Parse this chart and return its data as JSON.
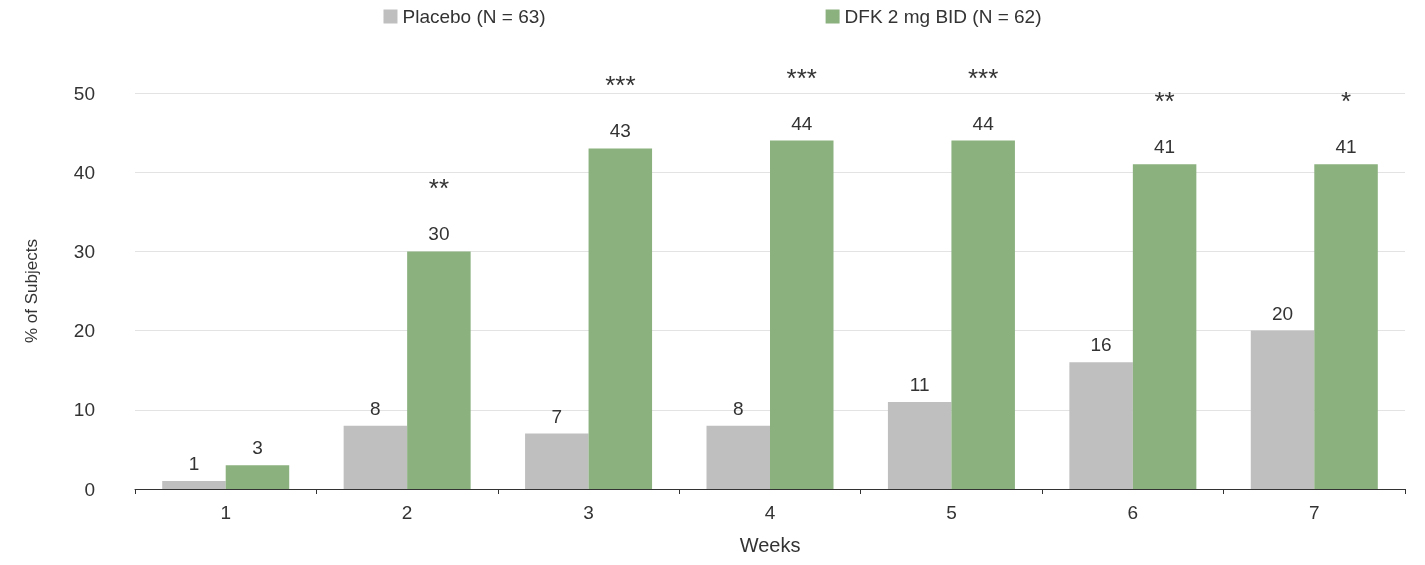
{
  "chart_data": {
    "type": "bar",
    "xlabel": "Weeks",
    "ylabel": "% of Subjects",
    "categories": [
      "1",
      "2",
      "3",
      "4",
      "5",
      "6",
      "7"
    ],
    "series": [
      {
        "name": "Placebo (N = 63)",
        "color": "#bfbfbf",
        "values": [
          1,
          8,
          7,
          8,
          11,
          16,
          20
        ]
      },
      {
        "name": "DFK 2 mg BID (N = 62)",
        "color": "#8ab17e",
        "values": [
          3,
          30,
          43,
          44,
          44,
          41,
          41
        ]
      }
    ],
    "ylim": [
      0,
      50
    ],
    "yticks": [
      0,
      10,
      20,
      30,
      40,
      50
    ],
    "grid": "y",
    "legend": "top",
    "data_labels": true,
    "annotations": [
      {
        "text": "**",
        "x": "2",
        "y": 30
      },
      {
        "text": "***",
        "x": "3",
        "y": 43
      },
      {
        "text": "***",
        "x": "4",
        "y": 44
      },
      {
        "text": "***",
        "x": "5",
        "y": 44
      },
      {
        "text": "**",
        "x": "6",
        "y": 41
      },
      {
        "text": "*",
        "x": "7",
        "y": 41
      }
    ]
  }
}
